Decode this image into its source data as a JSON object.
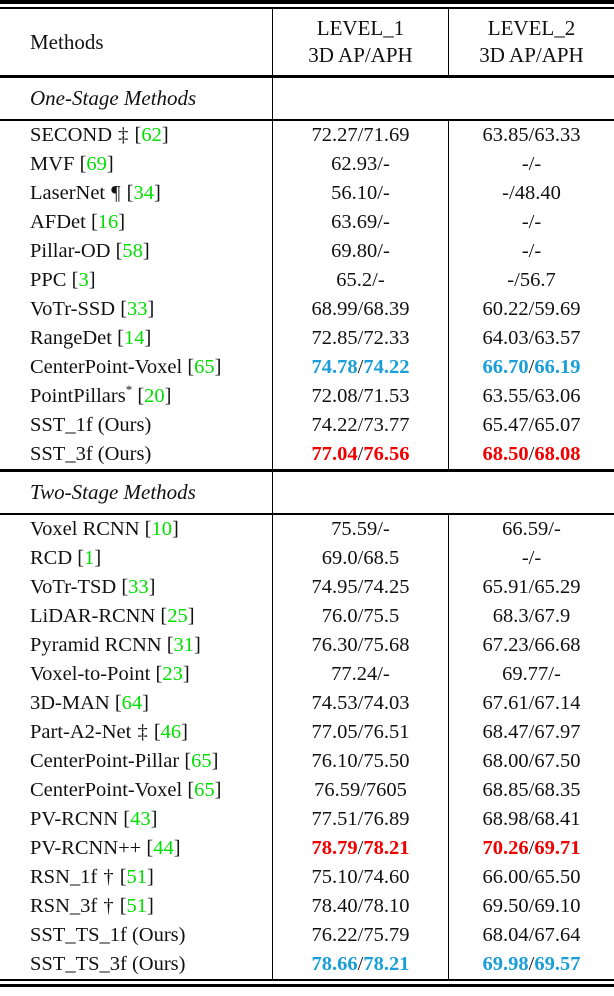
{
  "colors": {
    "citation_green": "#00e000",
    "best_red": "#f20000",
    "second_best_blue": "#1a9ed9",
    "text": "#111111"
  },
  "header": {
    "methods": "Methods",
    "level1_line1": "LEVEL_1",
    "level1_line2": "3D AP/APH",
    "level2_line1": "LEVEL_2",
    "level2_line2": "3D AP/APH"
  },
  "sections": [
    {
      "label": "One-Stage Methods",
      "rows": [
        {
          "name": "SECOND",
          "marker": "‡",
          "sup": "",
          "cite": "62",
          "l1a": "72.27",
          "l1b": "71.69",
          "l2a": "63.85",
          "l2b": "63.33",
          "hl": ""
        },
        {
          "name": "MVF",
          "marker": "",
          "sup": "",
          "cite": "69",
          "l1a": "62.93",
          "l1b": "-",
          "l2a": "-",
          "l2b": "-",
          "hl": ""
        },
        {
          "name": "LaserNet",
          "marker": "¶",
          "sup": "",
          "cite": "34",
          "l1a": "56.10",
          "l1b": "-",
          "l2a": "-",
          "l2b": "48.40",
          "hl": ""
        },
        {
          "name": "AFDet",
          "marker": "",
          "sup": "",
          "cite": "16",
          "l1a": "63.69",
          "l1b": "-",
          "l2a": "-",
          "l2b": "-",
          "hl": ""
        },
        {
          "name": "Pillar-OD",
          "marker": "",
          "sup": "",
          "cite": "58",
          "l1a": "69.80",
          "l1b": "-",
          "l2a": "-",
          "l2b": "-",
          "hl": ""
        },
        {
          "name": "PPC",
          "marker": "",
          "sup": "",
          "cite": "3",
          "l1a": "65.2",
          "l1b": "-",
          "l2a": "-",
          "l2b": "56.7",
          "hl": ""
        },
        {
          "name": "VoTr-SSD",
          "marker": "",
          "sup": "",
          "cite": "33",
          "l1a": "68.99",
          "l1b": "68.39",
          "l2a": "60.22",
          "l2b": "59.69",
          "hl": ""
        },
        {
          "name": "RangeDet",
          "marker": "",
          "sup": "",
          "cite": "14",
          "l1a": "72.85",
          "l1b": "72.33",
          "l2a": "64.03",
          "l2b": "63.57",
          "hl": ""
        },
        {
          "name": "CenterPoint-Voxel",
          "marker": "",
          "sup": "",
          "cite": "65",
          "l1a": "74.78",
          "l1b": "74.22",
          "l2a": "66.70",
          "l2b": "66.19",
          "hl": "blue"
        },
        {
          "name": "PointPillars",
          "marker": "",
          "sup": "*",
          "cite": "20",
          "l1a": "72.08",
          "l1b": "71.53",
          "l2a": "63.55",
          "l2b": "63.06",
          "hl": ""
        },
        {
          "name": "SST_1f (Ours)",
          "marker": "",
          "sup": "",
          "cite": "",
          "l1a": "74.22",
          "l1b": "73.77",
          "l2a": "65.47",
          "l2b": "65.07",
          "hl": ""
        },
        {
          "name": "SST_3f (Ours)",
          "marker": "",
          "sup": "",
          "cite": "",
          "l1a": "77.04",
          "l1b": "76.56",
          "l2a": "68.50",
          "l2b": "68.08",
          "hl": "red"
        }
      ]
    },
    {
      "label": "Two-Stage Methods",
      "rows": [
        {
          "name": "Voxel RCNN",
          "marker": "",
          "sup": "",
          "cite": "10",
          "l1a": "75.59",
          "l1b": "-",
          "l2a": "66.59",
          "l2b": "-",
          "hl": ""
        },
        {
          "name": "RCD",
          "marker": "",
          "sup": "",
          "cite": "1",
          "l1a": "69.0",
          "l1b": "68.5",
          "l2a": "-",
          "l2b": "-",
          "hl": ""
        },
        {
          "name": "VoTr-TSD",
          "marker": "",
          "sup": "",
          "cite": "33",
          "l1a": "74.95",
          "l1b": "74.25",
          "l2a": "65.91",
          "l2b": "65.29",
          "hl": ""
        },
        {
          "name": "LiDAR-RCNN",
          "marker": "",
          "sup": "",
          "cite": "25",
          "l1a": "76.0",
          "l1b": "75.5",
          "l2a": "68.3",
          "l2b": "67.9",
          "hl": ""
        },
        {
          "name": "Pyramid RCNN",
          "marker": "",
          "sup": "",
          "cite": "31",
          "l1a": "76.30",
          "l1b": "75.68",
          "l2a": "67.23",
          "l2b": "66.68",
          "hl": ""
        },
        {
          "name": "Voxel-to-Point",
          "marker": "",
          "sup": "",
          "cite": "23",
          "l1a": "77.24",
          "l1b": "-",
          "l2a": "69.77",
          "l2b": "-",
          "hl": ""
        },
        {
          "name": "3D-MAN",
          "marker": "",
          "sup": "",
          "cite": "64",
          "l1a": "74.53",
          "l1b": "74.03",
          "l2a": "67.61",
          "l2b": "67.14",
          "hl": ""
        },
        {
          "name": "Part-A2-Net",
          "marker": "‡",
          "sup": "",
          "cite": "46",
          "l1a": "77.05",
          "l1b": "76.51",
          "l2a": "68.47",
          "l2b": "67.97",
          "hl": ""
        },
        {
          "name": "CenterPoint-Pillar",
          "marker": "",
          "sup": "",
          "cite": "65",
          "l1a": "76.10",
          "l1b": "75.50",
          "l2a": "68.00",
          "l2b": "67.50",
          "hl": ""
        },
        {
          "name": "CenterPoint-Voxel",
          "marker": "",
          "sup": "",
          "cite": "65",
          "l1a": "76.59",
          "l1b": "7605",
          "l2a": "68.85",
          "l2b": "68.35",
          "hl": ""
        },
        {
          "name": "PV-RCNN",
          "marker": "",
          "sup": "",
          "cite": "43",
          "l1a": "77.51",
          "l1b": "76.89",
          "l2a": "68.98",
          "l2b": "68.41",
          "hl": ""
        },
        {
          "name": "PV-RCNN++",
          "marker": "",
          "sup": "",
          "cite": "44",
          "l1a": "78.79",
          "l1b": "78.21",
          "l2a": "70.26",
          "l2b": "69.71",
          "hl": "red"
        },
        {
          "name": "RSN_1f",
          "marker": "†",
          "sup": "",
          "cite": "51",
          "l1a": "75.10",
          "l1b": "74.60",
          "l2a": "66.00",
          "l2b": "65.50",
          "hl": ""
        },
        {
          "name": "RSN_3f",
          "marker": "†",
          "sup": "",
          "cite": "51",
          "l1a": "78.40",
          "l1b": "78.10",
          "l2a": "69.50",
          "l2b": "69.10",
          "hl": ""
        },
        {
          "name": "SST_TS_1f (Ours)",
          "marker": "",
          "sup": "",
          "cite": "",
          "l1a": "76.22",
          "l1b": "75.79",
          "l2a": "68.04",
          "l2b": "67.64",
          "hl": ""
        },
        {
          "name": "SST_TS_3f (Ours)",
          "marker": "",
          "sup": "",
          "cite": "",
          "l1a": "78.66",
          "l1b": "78.21",
          "l2a": "69.98",
          "l2b": "69.57",
          "hl": "blue"
        }
      ]
    }
  ]
}
